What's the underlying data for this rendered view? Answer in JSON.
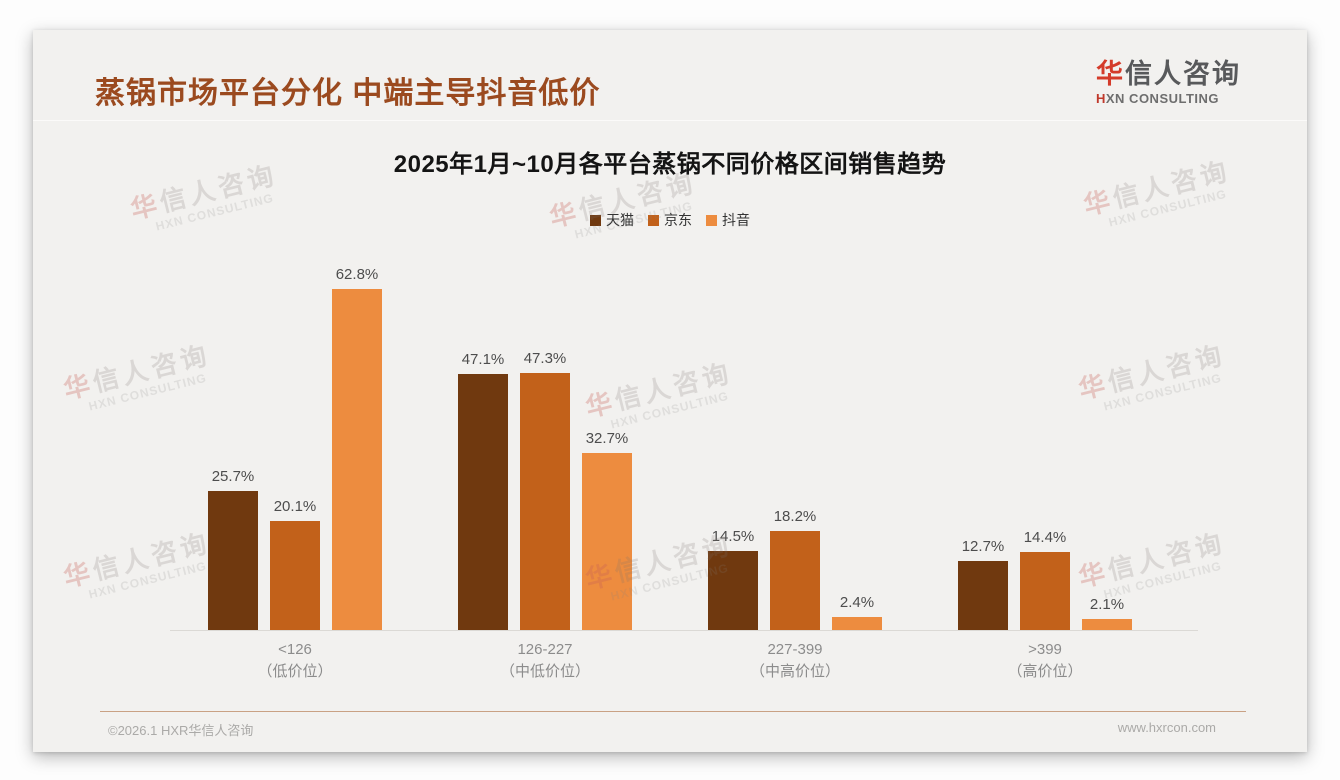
{
  "header": {
    "title": "蒸锅市场平台分化 中端主导抖音低价",
    "logo_cn_first": "华",
    "logo_cn_rest": "信人咨询",
    "logo_en_first": "H",
    "logo_en_rest": "XN CONSULTING"
  },
  "chart_data": {
    "type": "bar",
    "title": "2025年1月~10月各平台蒸锅不同价格区间销售趋势",
    "categories": [
      "<126",
      "126-227",
      "227-399",
      ">399"
    ],
    "category_sublabels": [
      "（低价位）",
      "（中低价位）",
      "（中高价位）",
      "（高价位）"
    ],
    "series": [
      {
        "name": "天猫",
        "color": "#70390F",
        "values": [
          25.7,
          47.1,
          14.5,
          12.7
        ]
      },
      {
        "name": "京东",
        "color": "#C2611A",
        "values": [
          20.1,
          47.3,
          18.2,
          14.4
        ]
      },
      {
        "name": "抖音",
        "color": "#ED8C3F",
        "values": [
          62.8,
          32.7,
          2.4,
          2.1
        ]
      }
    ],
    "value_suffix": "%",
    "ylim": [
      0,
      70
    ],
    "grid": false,
    "legend_position": "top"
  },
  "footer": {
    "copyright": "©2026.1 HXR华信人咨询",
    "website": "www.hxrcon.com"
  },
  "watermark": {
    "cn_first": "华",
    "cn_rest": "信人咨询",
    "en": "HXN CONSULTING"
  }
}
